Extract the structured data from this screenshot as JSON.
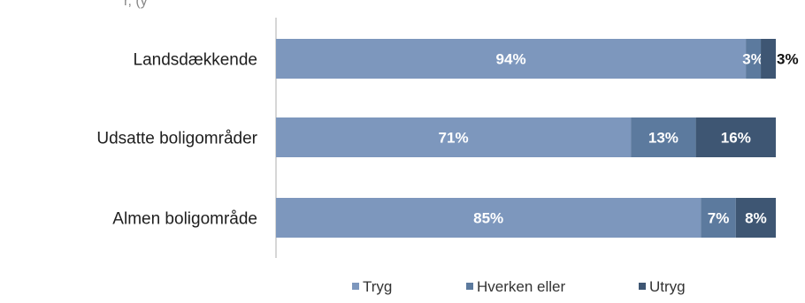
{
  "top_text": "r, (y",
  "chart_data": {
    "type": "bar",
    "orientation": "horizontal",
    "stacked": true,
    "categories": [
      "Landsdækkende",
      "Udsatte boligområder",
      "Almen boligområde"
    ],
    "series": [
      {
        "name": "Tryg",
        "values": [
          94,
          71,
          85
        ],
        "labels": [
          "94%",
          "71%",
          "85%"
        ],
        "color": "#7d97bd"
      },
      {
        "name": "Hverken eller",
        "values": [
          3,
          13,
          7
        ],
        "labels": [
          "3%",
          "13%",
          "7%"
        ],
        "color": "#5c7a9e"
      },
      {
        "name": "Utryg",
        "values": [
          3,
          16,
          8
        ],
        "labels": [
          "3%",
          "16%",
          "8%"
        ],
        "color": "#3e5673"
      }
    ],
    "xlim": [
      0,
      100
    ],
    "grid": false,
    "legend_position": "bottom"
  }
}
